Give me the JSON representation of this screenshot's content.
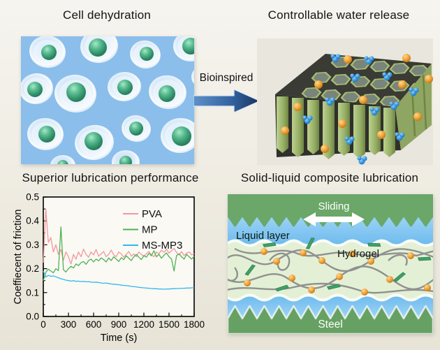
{
  "panels": {
    "cell": {
      "title": "Cell dehydration"
    },
    "water": {
      "title": "Controllable water release"
    },
    "lubrication": {
      "title": "Superior lubrication performance"
    },
    "composite": {
      "title": "Solid-liquid composite lubrication",
      "labels": {
        "sliding": "Sliding",
        "liquid": "Liquid layer",
        "hydrogel": "Hydrogel",
        "steel": "Steel"
      }
    }
  },
  "bioinspired": {
    "label": "Bioinspired",
    "arrow_start": "#5E90C8",
    "arrow_end": "#16345F"
  },
  "colors": {
    "page_bg": "#EFECE3",
    "cell_bg_blue": "#8BBEEB",
    "nucleus_green": "#3A9977",
    "honeycomb_green": "#9BB269",
    "sphere_orange": "#EFA33C",
    "molecule_blue": "#3D9BE0",
    "liquid_blue": "#74BEEC",
    "steel_green": "#6BA768",
    "hydrogel_bg": "#E4F0D6",
    "chain_gray": "#8C8C8C"
  },
  "chart_data": {
    "type": "line",
    "title": "",
    "xlabel": "Time (s)",
    "ylabel": "Coeffiecent of friction",
    "xlim": [
      0,
      1800
    ],
    "ylim": [
      0,
      0.5
    ],
    "xticks": [
      "0",
      "300",
      "600",
      "900",
      "1200",
      "1500",
      "1800"
    ],
    "yticks": [
      "0.0",
      "0.1",
      "0.2",
      "0.3",
      "0.4",
      "0.5"
    ],
    "grid": false,
    "legend_position": "top-right",
    "x_start": 0,
    "x_step": 30,
    "series": [
      {
        "name": "PVA",
        "color": "#F2989C",
        "values": [
          0.225,
          0.45,
          0.31,
          0.33,
          0.27,
          0.3,
          0.26,
          0.28,
          0.235,
          0.27,
          0.25,
          0.22,
          0.26,
          0.24,
          0.27,
          0.25,
          0.282,
          0.26,
          0.248,
          0.27,
          0.258,
          0.28,
          0.252,
          0.262,
          0.272,
          0.25,
          0.26,
          0.278,
          0.258,
          0.25,
          0.27,
          0.262,
          0.248,
          0.26,
          0.272,
          0.252,
          0.262,
          0.25,
          0.27,
          0.26,
          0.252,
          0.262,
          0.272,
          0.258,
          0.25,
          0.27,
          0.262,
          0.278,
          0.268,
          0.282,
          0.265,
          0.275,
          0.285,
          0.268,
          0.258,
          0.272,
          0.255,
          0.265,
          0.27,
          0.258,
          0.262
        ]
      },
      {
        "name": "MP",
        "color": "#4FB254",
        "values": [
          0.15,
          0.185,
          0.198,
          0.19,
          0.183,
          0.2,
          0.192,
          0.375,
          0.196,
          0.186,
          0.2,
          0.21,
          0.203,
          0.22,
          0.213,
          0.225,
          0.23,
          0.218,
          0.234,
          0.24,
          0.228,
          0.24,
          0.233,
          0.245,
          0.238,
          0.228,
          0.245,
          0.234,
          0.25,
          0.24,
          0.23,
          0.246,
          0.238,
          0.254,
          0.244,
          0.234,
          0.25,
          0.26,
          0.248,
          0.238,
          0.255,
          0.248,
          0.264,
          0.254,
          0.275,
          0.25,
          0.26,
          0.244,
          0.256,
          0.266,
          0.25,
          0.24,
          0.19,
          0.255,
          0.262,
          0.25,
          0.24,
          0.26,
          0.25,
          0.24,
          0.252
        ]
      },
      {
        "name": "MS-MP3",
        "color": "#31B8EC",
        "values": [
          0.19,
          0.165,
          0.172,
          0.168,
          0.17,
          0.166,
          0.162,
          0.158,
          0.155,
          0.152,
          0.15,
          0.148,
          0.15,
          0.147,
          0.148,
          0.146,
          0.147,
          0.145,
          0.146,
          0.144,
          0.143,
          0.144,
          0.142,
          0.14,
          0.139,
          0.14,
          0.138,
          0.136,
          0.135,
          0.134,
          0.133,
          0.131,
          0.13,
          0.129,
          0.128,
          0.126,
          0.125,
          0.124,
          0.122,
          0.121,
          0.12,
          0.119,
          0.118,
          0.117,
          0.116,
          0.116,
          0.115,
          0.115,
          0.114,
          0.115,
          0.115,
          0.116,
          0.116,
          0.117,
          0.117,
          0.118,
          0.118,
          0.119,
          0.119,
          0.12,
          0.12
        ]
      }
    ]
  }
}
